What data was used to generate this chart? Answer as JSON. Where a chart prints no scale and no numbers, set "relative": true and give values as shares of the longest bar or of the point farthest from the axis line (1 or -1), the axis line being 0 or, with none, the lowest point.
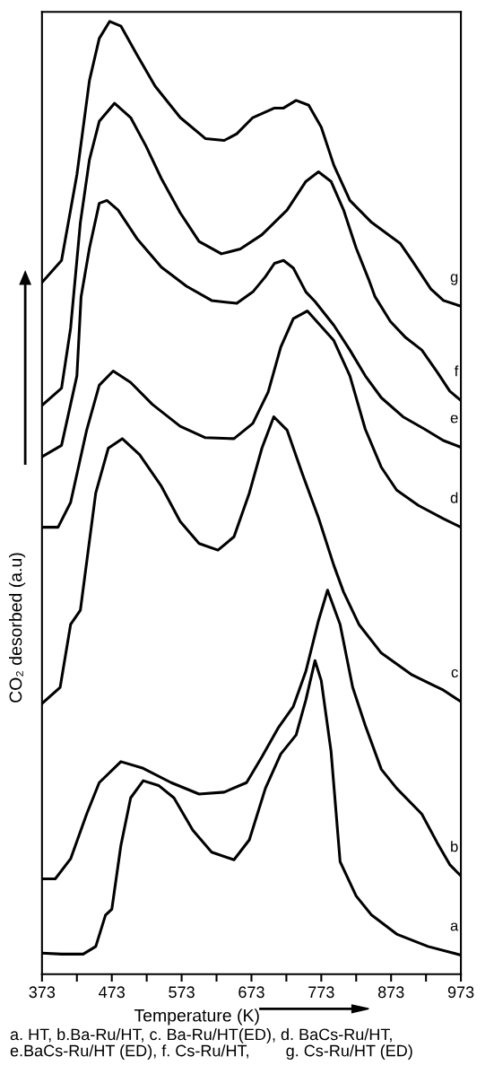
{
  "chart_data": {
    "type": "line",
    "relative": true,
    "xlabel": "Temperature (K)",
    "ylabel": "CO₂ desorbed (a.u)",
    "xlim": [
      373,
      973
    ],
    "xticks": [
      373,
      {
        "value": 423,
        "label": null
      },
      473,
      {
        "value": 523,
        "label": null
      },
      573,
      {
        "value": 623,
        "label": null
      },
      673,
      {
        "value": 723,
        "label": null
      },
      773,
      {
        "value": 823,
        "label": null
      },
      873,
      {
        "value": 923,
        "label": null
      },
      973
    ],
    "tick_labels": "x",
    "grid": false,
    "legend": false,
    "marker": "none",
    "line_style": "solid",
    "series": [
      {
        "name": "a",
        "color": "#000000",
        "x": [
          373,
          401,
          432,
          450,
          464,
          473,
          486,
          500,
          518,
          540,
          562,
          589,
          616,
          648,
          670,
          693,
          715,
          737,
          751,
          764,
          773,
          787,
          800,
          823,
          845,
          881,
          926,
          973
        ],
        "values": [
          0.022,
          0.021,
          0.021,
          0.029,
          0.062,
          0.068,
          0.135,
          0.185,
          0.203,
          0.198,
          0.185,
          0.151,
          0.128,
          0.12,
          0.141,
          0.195,
          0.231,
          0.251,
          0.288,
          0.329,
          0.308,
          0.234,
          0.118,
          0.082,
          0.062,
          0.042,
          0.029,
          0.02
        ]
      },
      {
        "name": "b",
        "color": "#000000",
        "x": [
          373,
          392,
          414,
          437,
          455,
          486,
          518,
          558,
          598,
          634,
          666,
          688,
          711,
          733,
          751,
          769,
          782,
          800,
          818,
          836,
          859,
          881,
          917,
          939,
          957,
          973
        ],
        "values": [
          0.1,
          0.1,
          0.121,
          0.168,
          0.201,
          0.223,
          0.216,
          0.201,
          0.189,
          0.191,
          0.201,
          0.228,
          0.258,
          0.281,
          0.318,
          0.371,
          0.403,
          0.367,
          0.301,
          0.261,
          0.215,
          0.195,
          0.168,
          0.138,
          0.115,
          0.103
        ]
      },
      {
        "name": "c",
        "color": "#000000",
        "x": [
          373,
          399,
          414,
          428,
          450,
          468,
          488,
          513,
          544,
          571,
          598,
          625,
          648,
          670,
          688,
          705,
          724,
          746,
          769,
          791,
          805,
          827,
          859,
          903,
          948,
          973
        ],
        "values": [
          0.284,
          0.301,
          0.367,
          0.382,
          0.505,
          0.552,
          0.562,
          0.545,
          0.512,
          0.475,
          0.452,
          0.445,
          0.459,
          0.505,
          0.552,
          0.585,
          0.571,
          0.525,
          0.479,
          0.429,
          0.401,
          0.367,
          0.337,
          0.314,
          0.298,
          0.286
        ]
      },
      {
        "name": "d",
        "color": "#000000",
        "x": [
          373,
          396,
          414,
          437,
          455,
          475,
          500,
          531,
          571,
          607,
          648,
          675,
          697,
          715,
          733,
          753,
          791,
          814,
          836,
          859,
          881,
          912,
          948,
          973
        ],
        "values": [
          0.469,
          0.469,
          0.495,
          0.571,
          0.618,
          0.633,
          0.621,
          0.598,
          0.575,
          0.563,
          0.562,
          0.578,
          0.611,
          0.658,
          0.688,
          0.696,
          0.665,
          0.628,
          0.572,
          0.532,
          0.508,
          0.492,
          0.478,
          0.469
        ]
      },
      {
        "name": "e",
        "color": "#000000",
        "x": [
          373,
          401,
          423,
          429,
          441,
          455,
          466,
          482,
          509,
          544,
          580,
          616,
          652,
          675,
          693,
          706,
          719,
          733,
          751,
          764,
          791,
          814,
          836,
          859,
          890,
          921,
          948,
          973
        ],
        "values": [
          0.543,
          0.555,
          0.628,
          0.711,
          0.762,
          0.809,
          0.812,
          0.802,
          0.772,
          0.742,
          0.722,
          0.707,
          0.704,
          0.716,
          0.732,
          0.746,
          0.749,
          0.741,
          0.716,
          0.706,
          0.681,
          0.655,
          0.628,
          0.605,
          0.585,
          0.572,
          0.56,
          0.553
        ]
      },
      {
        "name": "f",
        "color": "#000000",
        "x": [
          373,
          401,
          414,
          428,
          441,
          455,
          477,
          500,
          522,
          544,
          571,
          598,
          630,
          657,
          688,
          724,
          751,
          769,
          787,
          805,
          823,
          841,
          850,
          872,
          894,
          917,
          939,
          957,
          973
        ],
        "values": [
          0.597,
          0.615,
          0.678,
          0.789,
          0.855,
          0.895,
          0.914,
          0.899,
          0.869,
          0.835,
          0.799,
          0.769,
          0.756,
          0.761,
          0.776,
          0.802,
          0.832,
          0.842,
          0.832,
          0.802,
          0.762,
          0.729,
          0.711,
          0.685,
          0.668,
          0.655,
          0.632,
          0.612,
          0.602
        ]
      },
      {
        "name": "g",
        "color": "#000000",
        "x": [
          373,
          401,
          423,
          441,
          455,
          470,
          486,
          509,
          535,
          571,
          607,
          634,
          652,
          675,
          706,
          719,
          737,
          755,
          773,
          791,
          814,
          845,
          886,
          903,
          930,
          948,
          973
        ],
        "values": [
          0.726,
          0.749,
          0.839,
          0.938,
          0.982,
          1.0,
          0.995,
          0.965,
          0.932,
          0.899,
          0.877,
          0.875,
          0.882,
          0.899,
          0.909,
          0.909,
          0.917,
          0.912,
          0.889,
          0.849,
          0.812,
          0.789,
          0.767,
          0.749,
          0.719,
          0.707,
          0.701
        ]
      }
    ],
    "annotations": [
      "a. HT, b.Ba-Ru/HT, c. Ba-Ru/HT(ED), d. BaCs-Ru/HT,\ne.BaCs-Ru/HT (ED), f. Cs-Ru/HT,        g. Cs-Ru/HT (ED)"
    ]
  }
}
